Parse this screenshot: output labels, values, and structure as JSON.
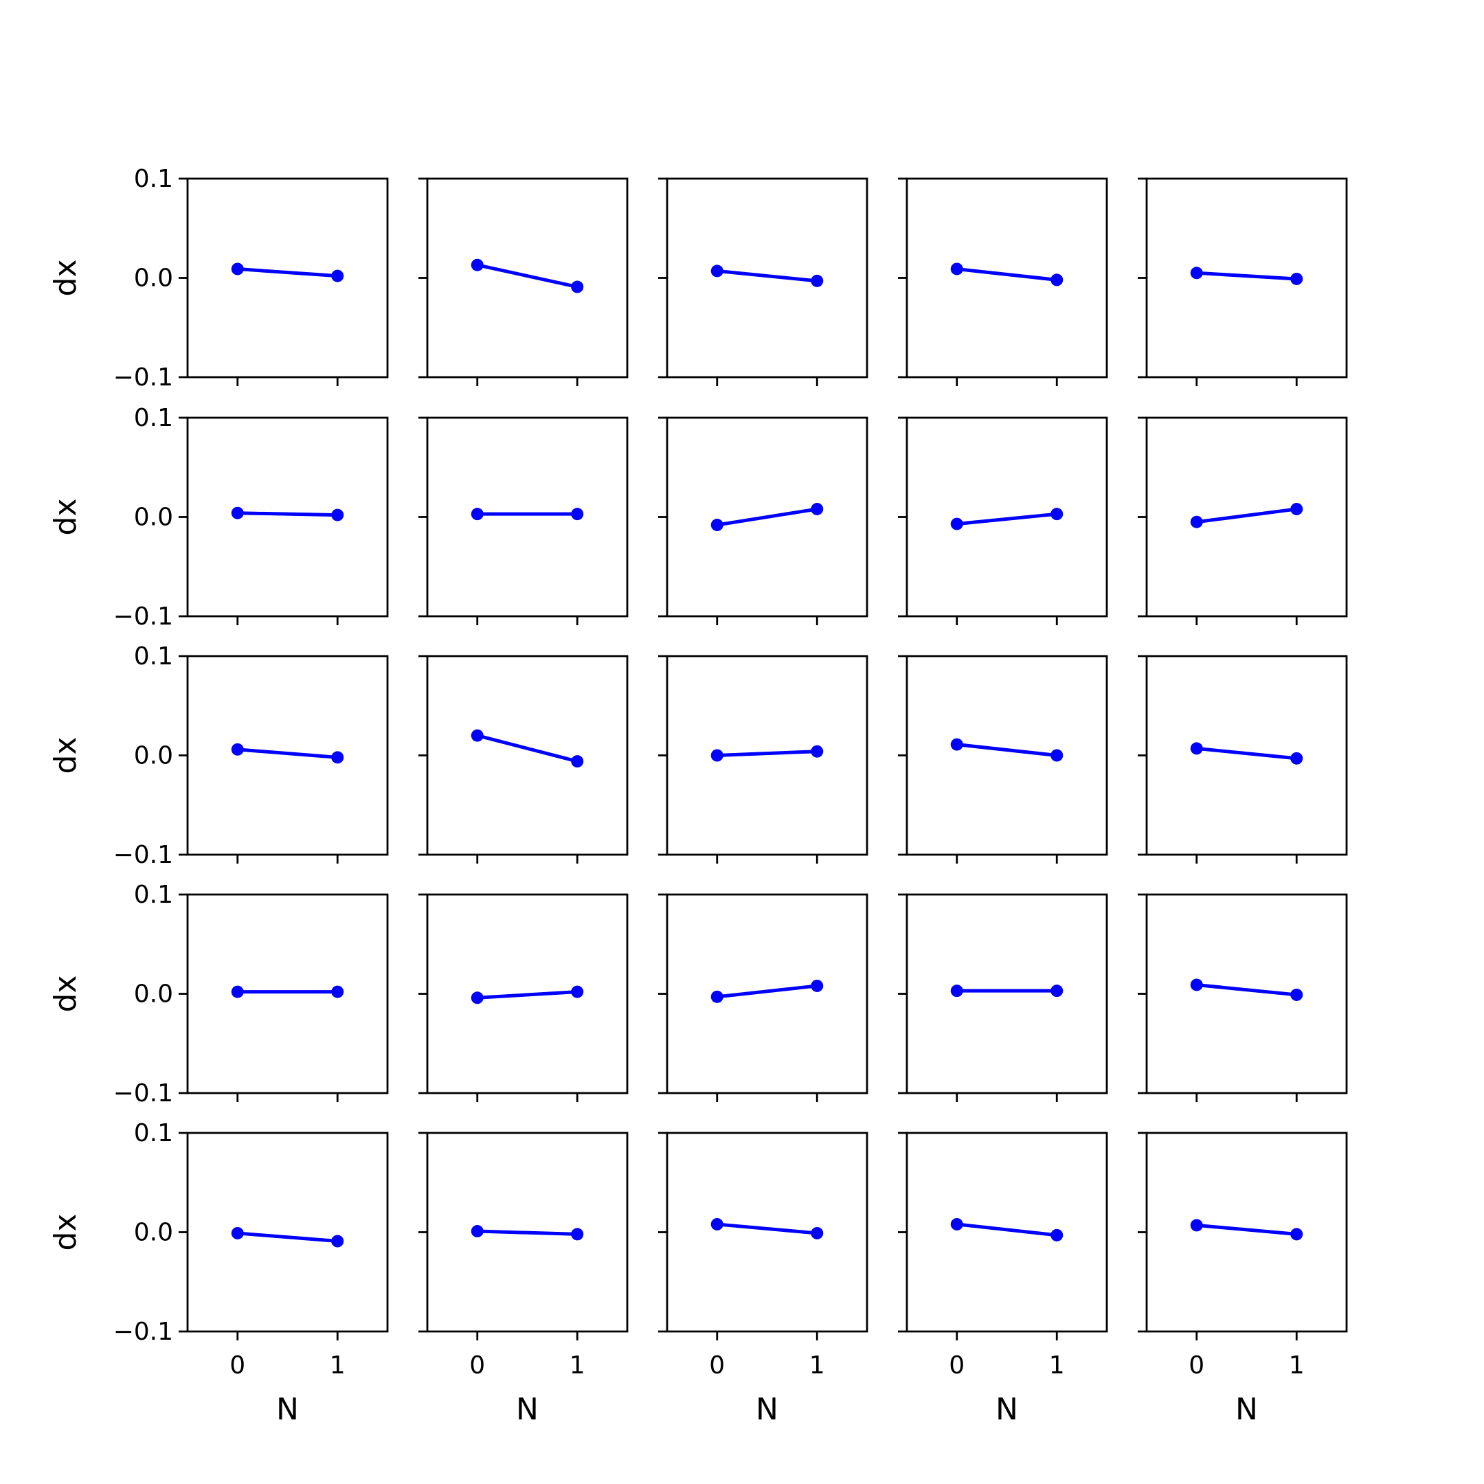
{
  "chart_data": {
    "type": "line",
    "layout": "5x5 grid of small multiples with shared axes",
    "xlabel": "N",
    "ylabel": "dx",
    "x": [
      0,
      1
    ],
    "xticks": [
      0,
      1
    ],
    "xtick_labels": [
      "0",
      "1"
    ],
    "xlim": [
      -0.5,
      1.5
    ],
    "ylim": [
      -0.1,
      0.1
    ],
    "yticks": [
      -0.1,
      0.0,
      0.1
    ],
    "ytick_labels": [
      "−0.1",
      "0.0",
      "0.1"
    ],
    "grid": false,
    "line_color": "#0000ff",
    "marker": "circle",
    "panels": [
      [
        [
          0.009,
          0.002
        ],
        [
          0.013,
          -0.009
        ],
        [
          0.007,
          -0.003
        ],
        [
          0.009,
          -0.002
        ],
        [
          0.005,
          -0.001
        ]
      ],
      [
        [
          0.004,
          0.002
        ],
        [
          0.003,
          0.003
        ],
        [
          -0.008,
          0.008
        ],
        [
          -0.007,
          0.003
        ],
        [
          -0.005,
          0.008
        ]
      ],
      [
        [
          0.006,
          -0.002
        ],
        [
          0.02,
          -0.006
        ],
        [
          0.0,
          0.004
        ],
        [
          0.011,
          0.0
        ],
        [
          0.007,
          -0.003
        ]
      ],
      [
        [
          0.002,
          0.002
        ],
        [
          -0.004,
          0.002
        ],
        [
          -0.003,
          0.008
        ],
        [
          0.003,
          0.003
        ],
        [
          0.009,
          -0.001
        ]
      ],
      [
        [
          -0.001,
          -0.009
        ],
        [
          0.001,
          -0.002
        ],
        [
          0.008,
          -0.001
        ],
        [
          0.008,
          -0.003
        ],
        [
          0.007,
          -0.002
        ]
      ]
    ]
  }
}
